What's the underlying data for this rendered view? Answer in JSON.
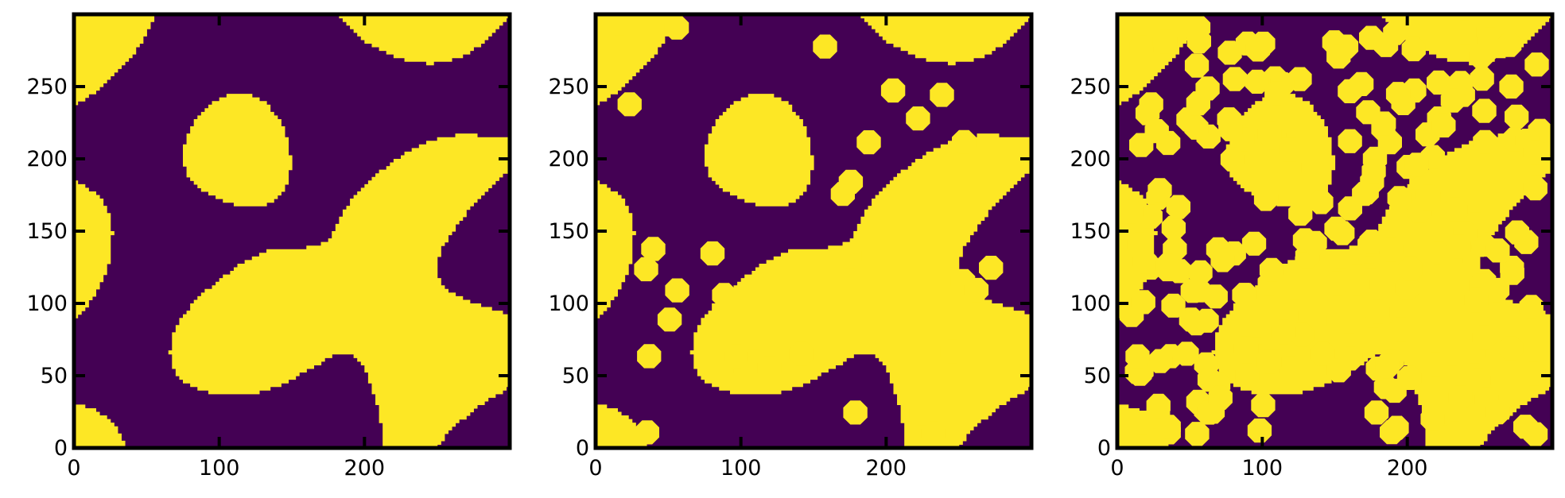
{
  "chart_data": [
    {
      "type": "heatmap",
      "title": "",
      "xlabel": "",
      "ylabel": "",
      "xlim": [
        0,
        300
      ],
      "ylim": [
        0,
        300
      ],
      "xticks": [
        0,
        100,
        200
      ],
      "yticks": [
        0,
        50,
        100,
        150,
        200,
        250
      ],
      "xtick_labels": [
        "0",
        "100",
        "200"
      ],
      "ytick_labels": [
        "0",
        "50",
        "100",
        "150",
        "200",
        "250"
      ],
      "grid": false,
      "colormap": "viridis",
      "colors": {
        "low": "#440154",
        "high": "#fde725"
      },
      "values": [
        0,
        1
      ],
      "description_of_field": "binary two-phase labyrinth pattern",
      "added_circles": 0,
      "seed": 17
    },
    {
      "type": "heatmap",
      "title": "",
      "xlabel": "",
      "ylabel": "",
      "xlim": [
        0,
        300
      ],
      "ylim": [
        0,
        300
      ],
      "xticks": [
        0,
        100,
        200
      ],
      "yticks": [
        0,
        50,
        100,
        150,
        200,
        250
      ],
      "xtick_labels": [
        "0",
        "100",
        "200"
      ],
      "ytick_labels": [
        "0",
        "50",
        "100",
        "150",
        "200",
        "250"
      ],
      "grid": false,
      "colormap": "viridis",
      "colors": {
        "low": "#440154",
        "high": "#fde725"
      },
      "values": [
        0,
        1
      ],
      "added_circles": 32,
      "circle_radius": 9,
      "seed": 17
    },
    {
      "type": "heatmap",
      "title": "",
      "xlabel": "",
      "ylabel": "",
      "xlim": [
        0,
        300
      ],
      "ylim": [
        0,
        300
      ],
      "xticks": [
        0,
        100,
        200
      ],
      "yticks": [
        0,
        50,
        100,
        150,
        200,
        250
      ],
      "xtick_labels": [
        "0",
        "100",
        "200"
      ],
      "ytick_labels": [
        "0",
        "50",
        "100",
        "150",
        "200",
        "250"
      ],
      "grid": false,
      "colormap": "viridis",
      "colors": {
        "low": "#440154",
        "high": "#fde725"
      },
      "values": [
        0,
        1
      ],
      "added_circles": 230,
      "circle_radius": 9,
      "seed": 17
    }
  ]
}
